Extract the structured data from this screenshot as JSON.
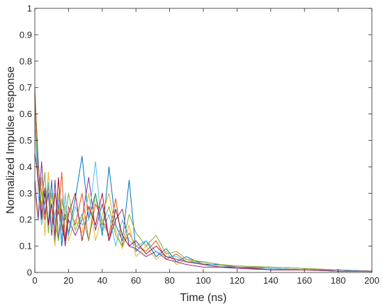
{
  "chart_data": {
    "type": "line",
    "title": "",
    "xlabel": "Time (ns)",
    "ylabel": "Normalized Impulse response",
    "xlim": [
      0,
      200
    ],
    "ylim": [
      0,
      1
    ],
    "xticks": [
      0,
      20,
      40,
      60,
      80,
      100,
      120,
      140,
      160,
      180,
      200
    ],
    "yticks": [
      0,
      0.1,
      0.2,
      0.3,
      0.4,
      0.5,
      0.6,
      0.7,
      0.8,
      0.9,
      1
    ],
    "xtick_labels": [
      "0",
      "20",
      "40",
      "60",
      "80",
      "100",
      "120",
      "140",
      "160",
      "180",
      "200"
    ],
    "ytick_labels": [
      "0",
      "0.1",
      "0.2",
      "0.3",
      "0.4",
      "0.5",
      "0.6",
      "0.7",
      "0.8",
      "0.9",
      "1"
    ],
    "grid": false,
    "series_colors": [
      "#0072BD",
      "#D95319",
      "#EDB120",
      "#7E2F8E",
      "#77AC30",
      "#4DBEEE",
      "#A2142F"
    ],
    "series": [
      {
        "x": [
          0,
          2,
          4,
          6,
          8,
          10,
          12,
          14,
          16,
          18,
          20,
          24,
          28,
          32,
          36,
          40,
          44,
          48,
          52,
          56,
          60,
          66,
          72,
          78,
          84,
          90,
          100,
          110,
          120,
          140,
          160,
          180,
          200
        ],
        "y": [
          0.68,
          0.43,
          0.22,
          0.3,
          0.18,
          0.35,
          0.12,
          0.26,
          0.1,
          0.22,
          0.15,
          0.28,
          0.44,
          0.2,
          0.3,
          0.14,
          0.4,
          0.18,
          0.12,
          0.35,
          0.08,
          0.12,
          0.06,
          0.09,
          0.04,
          0.06,
          0.03,
          0.03,
          0.02,
          0.015,
          0.01,
          0.01,
          0.005
        ]
      },
      {
        "x": [
          0,
          2,
          4,
          6,
          8,
          10,
          12,
          14,
          16,
          18,
          20,
          24,
          28,
          32,
          36,
          40,
          44,
          48,
          52,
          56,
          60,
          66,
          72,
          78,
          84,
          90,
          100,
          110,
          120,
          140,
          160,
          180,
          200
        ],
        "y": [
          0.7,
          0.4,
          0.3,
          0.2,
          0.33,
          0.15,
          0.3,
          0.22,
          0.38,
          0.12,
          0.25,
          0.18,
          0.3,
          0.12,
          0.26,
          0.2,
          0.14,
          0.28,
          0.1,
          0.15,
          0.1,
          0.08,
          0.12,
          0.05,
          0.07,
          0.04,
          0.04,
          0.03,
          0.02,
          0.02,
          0.015,
          0.01,
          0.005
        ]
      },
      {
        "x": [
          0,
          2,
          4,
          6,
          8,
          10,
          12,
          14,
          16,
          18,
          20,
          24,
          28,
          32,
          36,
          40,
          44,
          48,
          52,
          56,
          60,
          66,
          72,
          78,
          84,
          90,
          100,
          110,
          120,
          140,
          160,
          180,
          200
        ],
        "y": [
          0.3,
          0.2,
          0.36,
          0.14,
          0.38,
          0.2,
          0.1,
          0.3,
          0.16,
          0.25,
          0.12,
          0.2,
          0.15,
          0.3,
          0.12,
          0.22,
          0.3,
          0.16,
          0.09,
          0.18,
          0.06,
          0.1,
          0.05,
          0.08,
          0.03,
          0.05,
          0.03,
          0.02,
          0.02,
          0.01,
          0.01,
          0.005,
          0.005
        ]
      },
      {
        "x": [
          0,
          2,
          4,
          6,
          8,
          10,
          12,
          14,
          16,
          18,
          20,
          24,
          28,
          32,
          36,
          40,
          44,
          48,
          52,
          56,
          60,
          66,
          72,
          78,
          84,
          90,
          100,
          110,
          120,
          140,
          160,
          180,
          200
        ],
        "y": [
          0.35,
          0.2,
          0.42,
          0.22,
          0.3,
          0.14,
          0.35,
          0.12,
          0.24,
          0.1,
          0.2,
          0.14,
          0.2,
          0.36,
          0.16,
          0.26,
          0.12,
          0.2,
          0.24,
          0.1,
          0.09,
          0.06,
          0.08,
          0.05,
          0.04,
          0.03,
          0.02,
          0.02,
          0.015,
          0.01,
          0.01,
          0.005,
          0.005
        ]
      },
      {
        "x": [
          0,
          2,
          4,
          6,
          8,
          10,
          12,
          14,
          16,
          18,
          20,
          24,
          28,
          32,
          36,
          40,
          44,
          48,
          52,
          56,
          60,
          66,
          72,
          78,
          84,
          90,
          100,
          110,
          120,
          140,
          160,
          180,
          200
        ],
        "y": [
          0.62,
          0.35,
          0.25,
          0.38,
          0.15,
          0.3,
          0.2,
          0.12,
          0.28,
          0.2,
          0.3,
          0.16,
          0.22,
          0.12,
          0.3,
          0.18,
          0.25,
          0.14,
          0.1,
          0.22,
          0.15,
          0.1,
          0.14,
          0.07,
          0.08,
          0.05,
          0.04,
          0.03,
          0.025,
          0.02,
          0.015,
          0.01,
          0.005
        ]
      },
      {
        "x": [
          0,
          2,
          4,
          6,
          8,
          10,
          12,
          14,
          16,
          18,
          20,
          24,
          28,
          32,
          36,
          40,
          44,
          48,
          52,
          56,
          60,
          66,
          72,
          78,
          84,
          90,
          100,
          110,
          120,
          140,
          160,
          180,
          200
        ],
        "y": [
          0.58,
          0.3,
          0.18,
          0.26,
          0.34,
          0.16,
          0.22,
          0.28,
          0.12,
          0.3,
          0.14,
          0.25,
          0.18,
          0.2,
          0.42,
          0.15,
          0.22,
          0.1,
          0.2,
          0.12,
          0.1,
          0.12,
          0.08,
          0.06,
          0.06,
          0.04,
          0.035,
          0.025,
          0.02,
          0.015,
          0.01,
          0.01,
          0.005
        ]
      },
      {
        "x": [
          0,
          2,
          4,
          6,
          8,
          10,
          12,
          14,
          16,
          18,
          20,
          24,
          28,
          32,
          36,
          40,
          44,
          48,
          52,
          56,
          60,
          66,
          72,
          78,
          84,
          90,
          100,
          110,
          120,
          140,
          160,
          180,
          200
        ],
        "y": [
          0.45,
          0.36,
          0.2,
          0.32,
          0.18,
          0.26,
          0.14,
          0.36,
          0.18,
          0.12,
          0.22,
          0.3,
          0.12,
          0.25,
          0.18,
          0.3,
          0.12,
          0.24,
          0.14,
          0.1,
          0.12,
          0.07,
          0.1,
          0.06,
          0.05,
          0.04,
          0.03,
          0.02,
          0.02,
          0.01,
          0.01,
          0.005,
          0.005
        ]
      }
    ]
  }
}
